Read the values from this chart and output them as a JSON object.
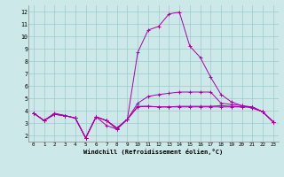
{
  "xlabel": "Windchill (Refroidissement éolien,°C)",
  "background_color": "#cce8e8",
  "line_color": "#aa00aa",
  "grid_color": "#99cccc",
  "xlim": [
    -0.5,
    23.5
  ],
  "ylim": [
    1.5,
    12.5
  ],
  "xticks": [
    0,
    1,
    2,
    3,
    4,
    5,
    6,
    7,
    8,
    9,
    10,
    11,
    12,
    13,
    14,
    15,
    16,
    17,
    18,
    19,
    20,
    21,
    22,
    23
  ],
  "yticks": [
    2,
    3,
    4,
    5,
    6,
    7,
    8,
    9,
    10,
    11,
    12
  ],
  "series": [
    [
      3.8,
      3.2,
      3.7,
      3.6,
      3.4,
      1.8,
      3.5,
      3.2,
      2.6,
      3.3,
      4.35,
      4.35,
      4.3,
      4.3,
      4.35,
      4.35,
      4.35,
      4.35,
      4.4,
      4.35,
      4.3,
      4.3,
      3.9,
      3.1
    ],
    [
      3.8,
      3.2,
      3.7,
      3.6,
      3.4,
      1.8,
      3.5,
      2.8,
      2.5,
      3.3,
      4.6,
      5.15,
      5.3,
      5.4,
      5.5,
      5.5,
      5.5,
      5.5,
      4.6,
      4.5,
      4.4,
      4.3,
      3.9,
      3.1
    ],
    [
      3.8,
      3.2,
      3.8,
      3.6,
      3.4,
      1.8,
      3.5,
      3.2,
      2.6,
      3.3,
      4.3,
      4.35,
      4.3,
      4.3,
      4.3,
      4.3,
      4.3,
      4.3,
      4.3,
      4.3,
      4.3,
      4.3,
      3.9,
      3.1
    ],
    [
      3.8,
      3.2,
      3.7,
      3.6,
      3.4,
      1.8,
      3.5,
      3.2,
      2.5,
      3.3,
      8.7,
      10.5,
      10.8,
      11.8,
      11.95,
      9.2,
      8.3,
      6.7,
      5.3,
      4.7,
      4.4,
      4.2,
      3.9,
      3.1
    ]
  ]
}
